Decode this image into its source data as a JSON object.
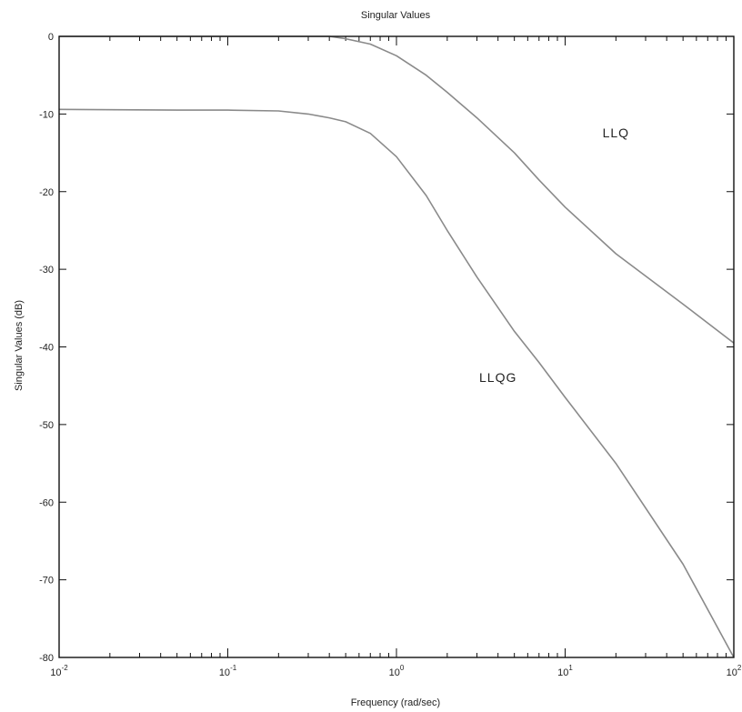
{
  "chart_data": {
    "type": "line",
    "title": "Singular Values",
    "xlabel": "Frequency (rad/sec)",
    "ylabel": "Singular Values (dB)",
    "xscale": "log",
    "xlim": [
      0.01,
      100
    ],
    "ylim": [
      -80,
      0
    ],
    "xticks": [
      {
        "value": 0.01,
        "base": "10",
        "exp": "-2"
      },
      {
        "value": 0.1,
        "base": "10",
        "exp": "-1"
      },
      {
        "value": 1,
        "base": "10",
        "exp": "0"
      },
      {
        "value": 10,
        "base": "10",
        "exp": "1"
      },
      {
        "value": 100,
        "base": "10",
        "exp": "2"
      }
    ],
    "yticks": [
      {
        "value": 0,
        "label": "0"
      },
      {
        "value": -10,
        "label": "-10"
      },
      {
        "value": -20,
        "label": "-20"
      },
      {
        "value": -30,
        "label": "-30"
      },
      {
        "value": -40,
        "label": "-40"
      },
      {
        "value": -50,
        "label": "-50"
      },
      {
        "value": -60,
        "label": "-60"
      },
      {
        "value": -70,
        "label": "-70"
      },
      {
        "value": -80,
        "label": "-80"
      }
    ],
    "grid": false,
    "line_color": "#8a8a8a",
    "series": [
      {
        "name": "LLQ",
        "x": [
          0.01,
          0.1,
          0.2,
          0.3,
          0.4,
          0.5,
          0.7,
          1.0,
          1.5,
          2.0,
          3.0,
          5.0,
          7.0,
          10.0,
          20.0,
          50.0,
          100.0
        ],
        "y": [
          0.0,
          0.0,
          0.0,
          0.0,
          0.0,
          -0.3,
          -1.0,
          -2.5,
          -5.0,
          -7.2,
          -10.5,
          -15.0,
          -18.5,
          -22.0,
          -28.0,
          -34.5,
          -39.5
        ]
      },
      {
        "name": "LLQG",
        "x": [
          0.01,
          0.05,
          0.1,
          0.2,
          0.3,
          0.4,
          0.5,
          0.7,
          1.0,
          1.5,
          2.0,
          3.0,
          5.0,
          7.0,
          10.0,
          20.0,
          50.0,
          100.0
        ],
        "y": [
          -9.4,
          -9.5,
          -9.5,
          -9.6,
          -10.0,
          -10.5,
          -11.0,
          -12.5,
          -15.5,
          -20.5,
          -25.0,
          -31.0,
          -38.0,
          -42.0,
          -46.5,
          -55.0,
          -68.0,
          -80.0
        ]
      }
    ],
    "annotations": [
      {
        "text": "LLQ",
        "x": 20,
        "y": -13
      },
      {
        "text": "LLQG",
        "x": 4,
        "y": -44.5
      }
    ]
  }
}
